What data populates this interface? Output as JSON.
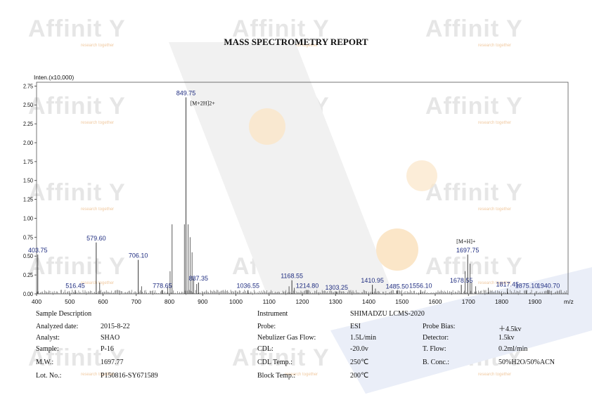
{
  "report": {
    "title": "MASS SPECTROMETRY REPORT"
  },
  "watermark": {
    "brand": "Affinit",
    "tagline": "research together"
  },
  "chart_data": {
    "type": "bar",
    "ylabel": "Inten.(x10,000)",
    "xlabel": "m/z",
    "xlim": [
      400,
      2000
    ],
    "ylim": [
      0,
      2.8
    ],
    "xticks": [
      400,
      500,
      600,
      700,
      800,
      900,
      1000,
      1100,
      1200,
      1300,
      1400,
      1500,
      1600,
      1700,
      1800,
      1900
    ],
    "yticks": [
      "0.00",
      "0.25",
      "0.50",
      "0.75",
      "1.00",
      "1.25",
      "1.50",
      "1.75",
      "2.00",
      "2.25",
      "2.50",
      "2.75"
    ],
    "grid": false,
    "peaks": [
      {
        "mz": 403.75,
        "intensity": 0.52,
        "label": "403.75"
      },
      {
        "mz": 516.45,
        "intensity": 0.05,
        "label": "516.45"
      },
      {
        "mz": 579.6,
        "intensity": 0.68,
        "label": "579.60"
      },
      {
        "mz": 706.1,
        "intensity": 0.45,
        "label": "706.10"
      },
      {
        "mz": 778.65,
        "intensity": 0.05,
        "label": "778.65"
      },
      {
        "mz": 849.75,
        "intensity": 2.6,
        "label": "849.75"
      },
      {
        "mz": 887.35,
        "intensity": 0.15,
        "label": "887.35"
      },
      {
        "mz": 1036.55,
        "intensity": 0.05,
        "label": "1036.55"
      },
      {
        "mz": 1168.55,
        "intensity": 0.18,
        "label": "1168.55"
      },
      {
        "mz": 1214.8,
        "intensity": 0.05,
        "label": "1214.80"
      },
      {
        "mz": 1303.25,
        "intensity": 0.03,
        "label": "1303.25"
      },
      {
        "mz": 1410.95,
        "intensity": 0.12,
        "label": "1410.95"
      },
      {
        "mz": 1485.5,
        "intensity": 0.04,
        "label": "1485.50"
      },
      {
        "mz": 1556.1,
        "intensity": 0.05,
        "label": "1556.10"
      },
      {
        "mz": 1678.55,
        "intensity": 0.12,
        "label": "1678.55"
      },
      {
        "mz": 1697.75,
        "intensity": 0.52,
        "label": "1697.75"
      },
      {
        "mz": 1817.45,
        "intensity": 0.07,
        "label": "1817.45"
      },
      {
        "mz": 1875.1,
        "intensity": 0.05,
        "label": "1875.10"
      },
      {
        "mz": 1940.7,
        "intensity": 0.05,
        "label": "1940.70"
      }
    ],
    "minor_peaks": [
      {
        "mz": 808,
        "intensity": 0.92
      },
      {
        "mz": 845,
        "intensity": 0.92
      },
      {
        "mz": 856,
        "intensity": 0.92
      },
      {
        "mz": 862,
        "intensity": 0.75
      },
      {
        "mz": 868,
        "intensity": 0.55
      },
      {
        "mz": 873,
        "intensity": 0.2
      },
      {
        "mz": 882,
        "intensity": 0.13
      },
      {
        "mz": 802,
        "intensity": 0.3
      },
      {
        "mz": 795,
        "intensity": 0.1
      },
      {
        "mz": 590,
        "intensity": 0.15
      },
      {
        "mz": 716,
        "intensity": 0.1
      },
      {
        "mz": 1160,
        "intensity": 0.1
      },
      {
        "mz": 1176,
        "intensity": 0.08
      },
      {
        "mz": 1420,
        "intensity": 0.07
      },
      {
        "mz": 1690,
        "intensity": 0.3
      },
      {
        "mz": 1705,
        "intensity": 0.4
      },
      {
        "mz": 1710,
        "intensity": 0.15
      },
      {
        "mz": 1722,
        "intensity": 0.1
      },
      {
        "mz": 1760,
        "intensity": 0.08
      }
    ],
    "annotations": [
      {
        "text": "[M+2H]2+",
        "mz": 849.75,
        "intensity": 2.6
      },
      {
        "text": "[M+H]+",
        "mz": 1697.75,
        "intensity": 0.52
      }
    ]
  },
  "info": {
    "left": [
      {
        "label": "Sample Description",
        "value": ""
      },
      {
        "label": "Analyzed date:",
        "value": "2015-8-22"
      },
      {
        "label": "Analyst:",
        "value": "SHAO"
      },
      {
        "label": "Sample:",
        "value": "P-16"
      },
      {
        "label": "M.W.:",
        "value": "1697.77"
      },
      {
        "label": "Lot. No.:",
        "value": "P150816-SY671589"
      }
    ],
    "mid": [
      {
        "label": "Instrument",
        "value": "SHIMADZU LCMS-2020"
      },
      {
        "label": "Probe:",
        "value": "ESI"
      },
      {
        "label": "Nebulizer Gas Flow:",
        "value": "1.5L/min"
      },
      {
        "label": "CDL:",
        "value": "-20.0v"
      },
      {
        "label": "CDL Temp.:",
        "value": "250℃"
      },
      {
        "label": "Block Temp.:",
        "value": "200℃"
      }
    ],
    "right": [
      {
        "label": "Probe Bias:",
        "value": "＋4.5kv"
      },
      {
        "label": "Detector:",
        "value": "1.5kv"
      },
      {
        "label": "T. Flow:",
        "value": "0.2ml/min"
      },
      {
        "label": "B. Conc.:",
        "value": "50%H2O/50%ACN"
      }
    ]
  }
}
